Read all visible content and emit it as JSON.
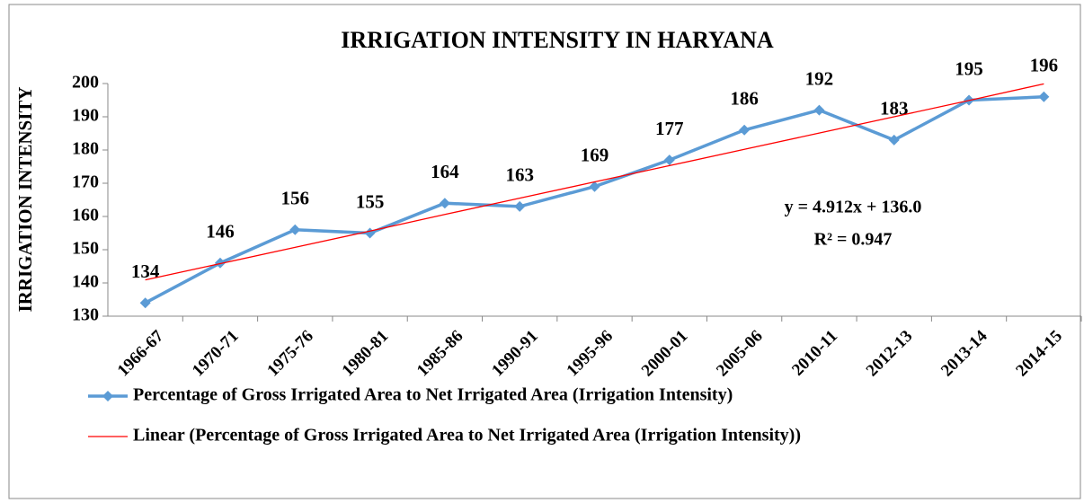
{
  "chart_data": {
    "type": "line",
    "title": "IRRIGATION INTENSITY IN HARYANA",
    "y_label": "IRRIGATION INTENSITY",
    "categories": [
      "1966-67",
      "1970-71",
      "1975-76",
      "1980-81",
      "1985-86",
      "1990-91",
      "1995-96",
      "2000-01",
      "2005-06",
      "2010-11",
      "2012-13",
      "2013-14",
      "2014-15"
    ],
    "series": [
      {
        "name": "Percentage of Gross Irrigated Area to Net Irrigated Area (Irrigation Intensity)",
        "color": "#5b9bd5",
        "values": [
          134,
          146,
          156,
          155,
          164,
          163,
          169,
          177,
          186,
          192,
          183,
          195,
          196
        ],
        "data_labels": true
      },
      {
        "name": "Linear (Percentage of Gross Irrigated Area to Net Irrigated Area (Irrigation Intensity))",
        "color": "#ff0000",
        "values": [
          140.9,
          145.8,
          150.7,
          155.6,
          160.6,
          165.5,
          170.4,
          175.3,
          180.2,
          185.1,
          190.0,
          194.9,
          199.9
        ],
        "data_labels": false
      }
    ],
    "annotations": [
      "y = 4.912x + 136.0",
      "R² = 0.947"
    ],
    "ylim": [
      130,
      200
    ],
    "yticks": [
      130,
      140,
      150,
      160,
      170,
      180,
      190,
      200
    ],
    "legend": "bottom"
  }
}
